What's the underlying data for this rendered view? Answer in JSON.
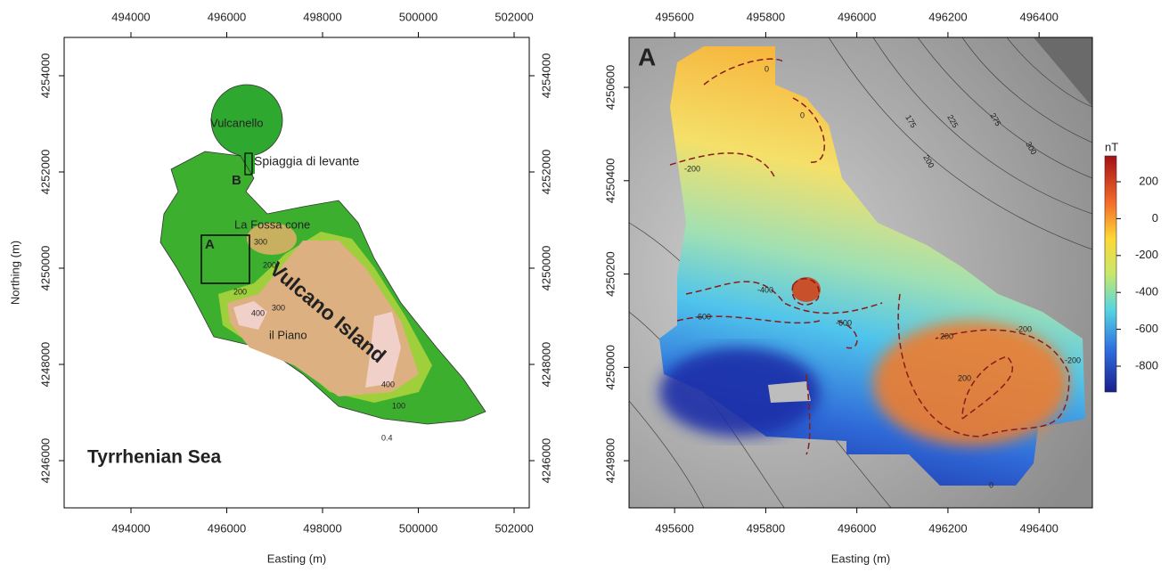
{
  "left_map": {
    "x_label": "Easting (m)",
    "y_label": "Northing (m)",
    "xlim": [
      492605,
      502316
    ],
    "xticks": [
      494000,
      496000,
      498000,
      500000,
      502000
    ],
    "ylim": [
      4245019,
      4254796
    ],
    "yticks": [
      4246000,
      4248000,
      4250000,
      4252000,
      4254000
    ],
    "labels": {
      "vulcanello": "Vulcanello",
      "beach": "Spiaggia di levante",
      "b": "B",
      "la_fossa": "La Fossa cone",
      "a": "A",
      "island": "Vulcano Island",
      "piano": "il Piano",
      "sea": "Tyrrhenian Sea"
    },
    "contour_labels": [
      "300",
      "200",
      "200",
      "300",
      "400",
      "400",
      "100",
      "0.4"
    ]
  },
  "right_map": {
    "panel_label": "A",
    "x_label": "Easting (m)",
    "xlim": [
      495500,
      496517
    ],
    "xticks": [
      495600,
      495800,
      496000,
      496200,
      496400
    ],
    "ylim": [
      4249699,
      4250707
    ],
    "yticks": [
      4249800,
      4250000,
      4250200,
      4250400,
      4250600
    ],
    "contour_labels": [
      "0",
      "0",
      "-200",
      "-400",
      "-600",
      "-600",
      "-200",
      "200",
      "-200",
      "200",
      "0",
      "175",
      "225",
      "275",
      "300",
      "200"
    ],
    "colorbar": {
      "title": "nT",
      "lim": [
        -940,
        340
      ],
      "ticks": [
        200,
        0,
        -200,
        -400,
        -600,
        -800
      ]
    }
  }
}
